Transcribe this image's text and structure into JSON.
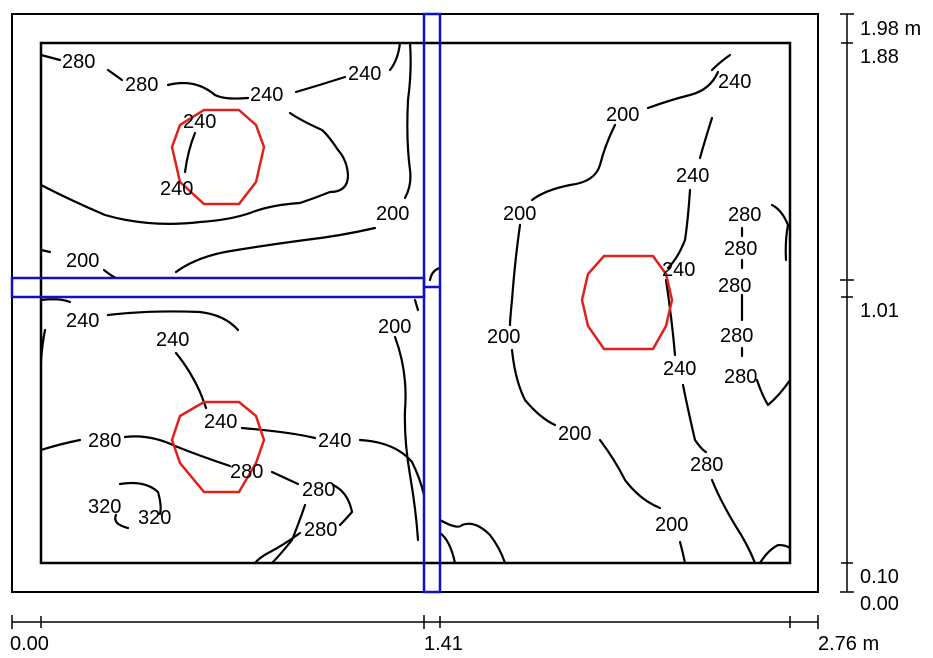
{
  "colors": {
    "contour": "#000000",
    "frame": "#000000",
    "beam": "#1010c8",
    "luminaire": "#e0201a",
    "background": "#ffffff"
  },
  "x_scale": {
    "start_label": "0.00",
    "mid_label": "1.41",
    "end_label": "2.76 m"
  },
  "y_scale": {
    "top_label": "1.98 m",
    "inner_top_label": "1.88",
    "mid_label": "1.01",
    "inner_bottom_label": "0.10",
    "bottom_label": "0.00"
  },
  "contour_labels": [
    {
      "id": "c01",
      "text": "280"
    },
    {
      "id": "c02",
      "text": "280"
    },
    {
      "id": "c03",
      "text": "240"
    },
    {
      "id": "c04",
      "text": "240"
    },
    {
      "id": "c05",
      "text": "240"
    },
    {
      "id": "c06",
      "text": "240"
    },
    {
      "id": "c07",
      "text": "200"
    },
    {
      "id": "c08",
      "text": "200"
    },
    {
      "id": "c09",
      "text": "240"
    },
    {
      "id": "c10",
      "text": "240"
    },
    {
      "id": "c11",
      "text": "200"
    },
    {
      "id": "c12",
      "text": "240"
    },
    {
      "id": "c13",
      "text": "280"
    },
    {
      "id": "c14",
      "text": "240"
    },
    {
      "id": "c15",
      "text": "280"
    },
    {
      "id": "c16",
      "text": "280"
    },
    {
      "id": "c17",
      "text": "320"
    },
    {
      "id": "c18",
      "text": "320"
    },
    {
      "id": "c19",
      "text": "280"
    },
    {
      "id": "c20",
      "text": "200"
    },
    {
      "id": "c21",
      "text": "200"
    },
    {
      "id": "c22",
      "text": "200"
    },
    {
      "id": "c23",
      "text": "200"
    },
    {
      "id": "c24",
      "text": "200"
    },
    {
      "id": "c25",
      "text": "240"
    },
    {
      "id": "c26",
      "text": "240"
    },
    {
      "id": "c27",
      "text": "240"
    },
    {
      "id": "c28",
      "text": "240"
    },
    {
      "id": "c29",
      "text": "280"
    },
    {
      "id": "c30",
      "text": "280"
    },
    {
      "id": "c31",
      "text": "280"
    },
    {
      "id": "c32",
      "text": "280"
    },
    {
      "id": "c33",
      "text": "280"
    }
  ]
}
